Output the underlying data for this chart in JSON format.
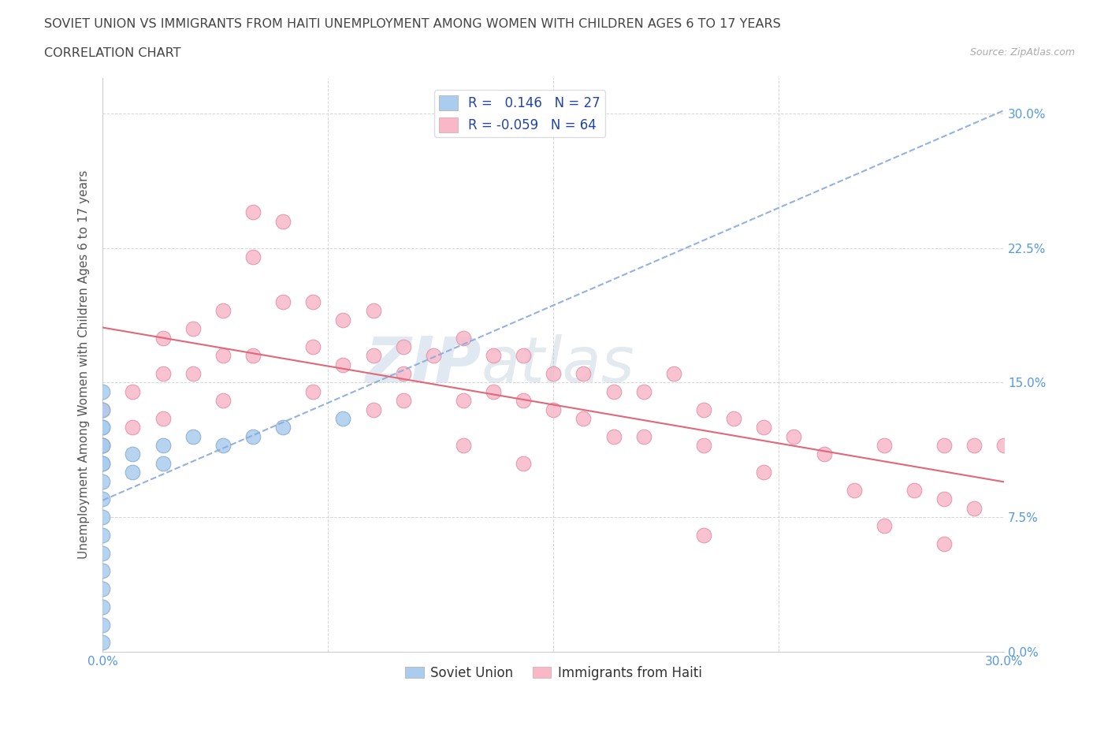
{
  "title_line1": "SOVIET UNION VS IMMIGRANTS FROM HAITI UNEMPLOYMENT AMONG WOMEN WITH CHILDREN AGES 6 TO 17 YEARS",
  "title_line2": "CORRELATION CHART",
  "source_text": "Source: ZipAtlas.com",
  "ylabel": "Unemployment Among Women with Children Ages 6 to 17 years",
  "xlim": [
    0.0,
    0.3
  ],
  "ylim": [
    0.0,
    0.32
  ],
  "yticks": [
    0.0,
    0.075,
    0.15,
    0.225,
    0.3
  ],
  "ytick_labels": [
    "0.0%",
    "7.5%",
    "15.0%",
    "22.5%",
    "30.0%"
  ],
  "xtick_labels_show": [
    "0.0%",
    "30.0%"
  ],
  "xtick_positions_show": [
    0.0,
    0.3
  ],
  "xtick_minor": [
    0.075,
    0.15,
    0.225
  ],
  "soviet_color": "#aaccee",
  "soviet_edge": "#88aacc",
  "haiti_color": "#f8b8c8",
  "haiti_edge": "#e090a8",
  "trend_soviet_color": "#88aadd",
  "trend_haiti_color": "#e06878",
  "r_soviet": 0.146,
  "n_soviet": 27,
  "r_haiti": -0.059,
  "n_haiti": 64,
  "legend_color_soviet": "#aaccee",
  "legend_color_haiti": "#f8b8c8",
  "watermark_zip": "ZIP",
  "watermark_atlas": "atlas",
  "title_color": "#444444",
  "axis_label_color": "#555555",
  "tick_color": "#5599dd",
  "soviet_x": [
    0.0,
    0.0,
    0.0,
    0.0,
    0.0,
    0.0,
    0.0,
    0.0,
    0.0,
    0.0,
    0.0,
    0.0,
    0.0,
    0.0,
    0.0,
    0.0,
    0.0,
    0.0,
    0.01,
    0.01,
    0.02,
    0.02,
    0.03,
    0.04,
    0.05,
    0.06,
    0.08
  ],
  "soviet_y": [
    0.145,
    0.135,
    0.125,
    0.115,
    0.105,
    0.095,
    0.085,
    0.075,
    0.065,
    0.055,
    0.045,
    0.035,
    0.025,
    0.015,
    0.005,
    0.125,
    0.115,
    0.105,
    0.11,
    0.1,
    0.115,
    0.105,
    0.12,
    0.115,
    0.12,
    0.125,
    0.13
  ],
  "haiti_x": [
    0.0,
    0.0,
    0.01,
    0.01,
    0.02,
    0.02,
    0.02,
    0.03,
    0.03,
    0.04,
    0.04,
    0.04,
    0.05,
    0.05,
    0.05,
    0.06,
    0.06,
    0.07,
    0.07,
    0.07,
    0.08,
    0.08,
    0.09,
    0.09,
    0.09,
    0.1,
    0.1,
    0.11,
    0.12,
    0.12,
    0.13,
    0.13,
    0.14,
    0.14,
    0.15,
    0.15,
    0.16,
    0.16,
    0.17,
    0.17,
    0.18,
    0.18,
    0.19,
    0.2,
    0.2,
    0.21,
    0.22,
    0.22,
    0.23,
    0.24,
    0.25,
    0.26,
    0.27,
    0.28,
    0.28,
    0.29,
    0.29,
    0.3,
    0.1,
    0.12,
    0.14,
    0.2,
    0.26,
    0.28
  ],
  "haiti_y": [
    0.135,
    0.115,
    0.145,
    0.125,
    0.175,
    0.155,
    0.13,
    0.18,
    0.155,
    0.19,
    0.165,
    0.14,
    0.245,
    0.22,
    0.165,
    0.24,
    0.195,
    0.195,
    0.17,
    0.145,
    0.185,
    0.16,
    0.19,
    0.165,
    0.135,
    0.17,
    0.14,
    0.165,
    0.175,
    0.14,
    0.165,
    0.145,
    0.165,
    0.14,
    0.155,
    0.135,
    0.155,
    0.13,
    0.145,
    0.12,
    0.145,
    0.12,
    0.155,
    0.135,
    0.115,
    0.13,
    0.125,
    0.1,
    0.12,
    0.11,
    0.09,
    0.115,
    0.09,
    0.115,
    0.085,
    0.115,
    0.08,
    0.115,
    0.155,
    0.115,
    0.105,
    0.065,
    0.07,
    0.06
  ]
}
